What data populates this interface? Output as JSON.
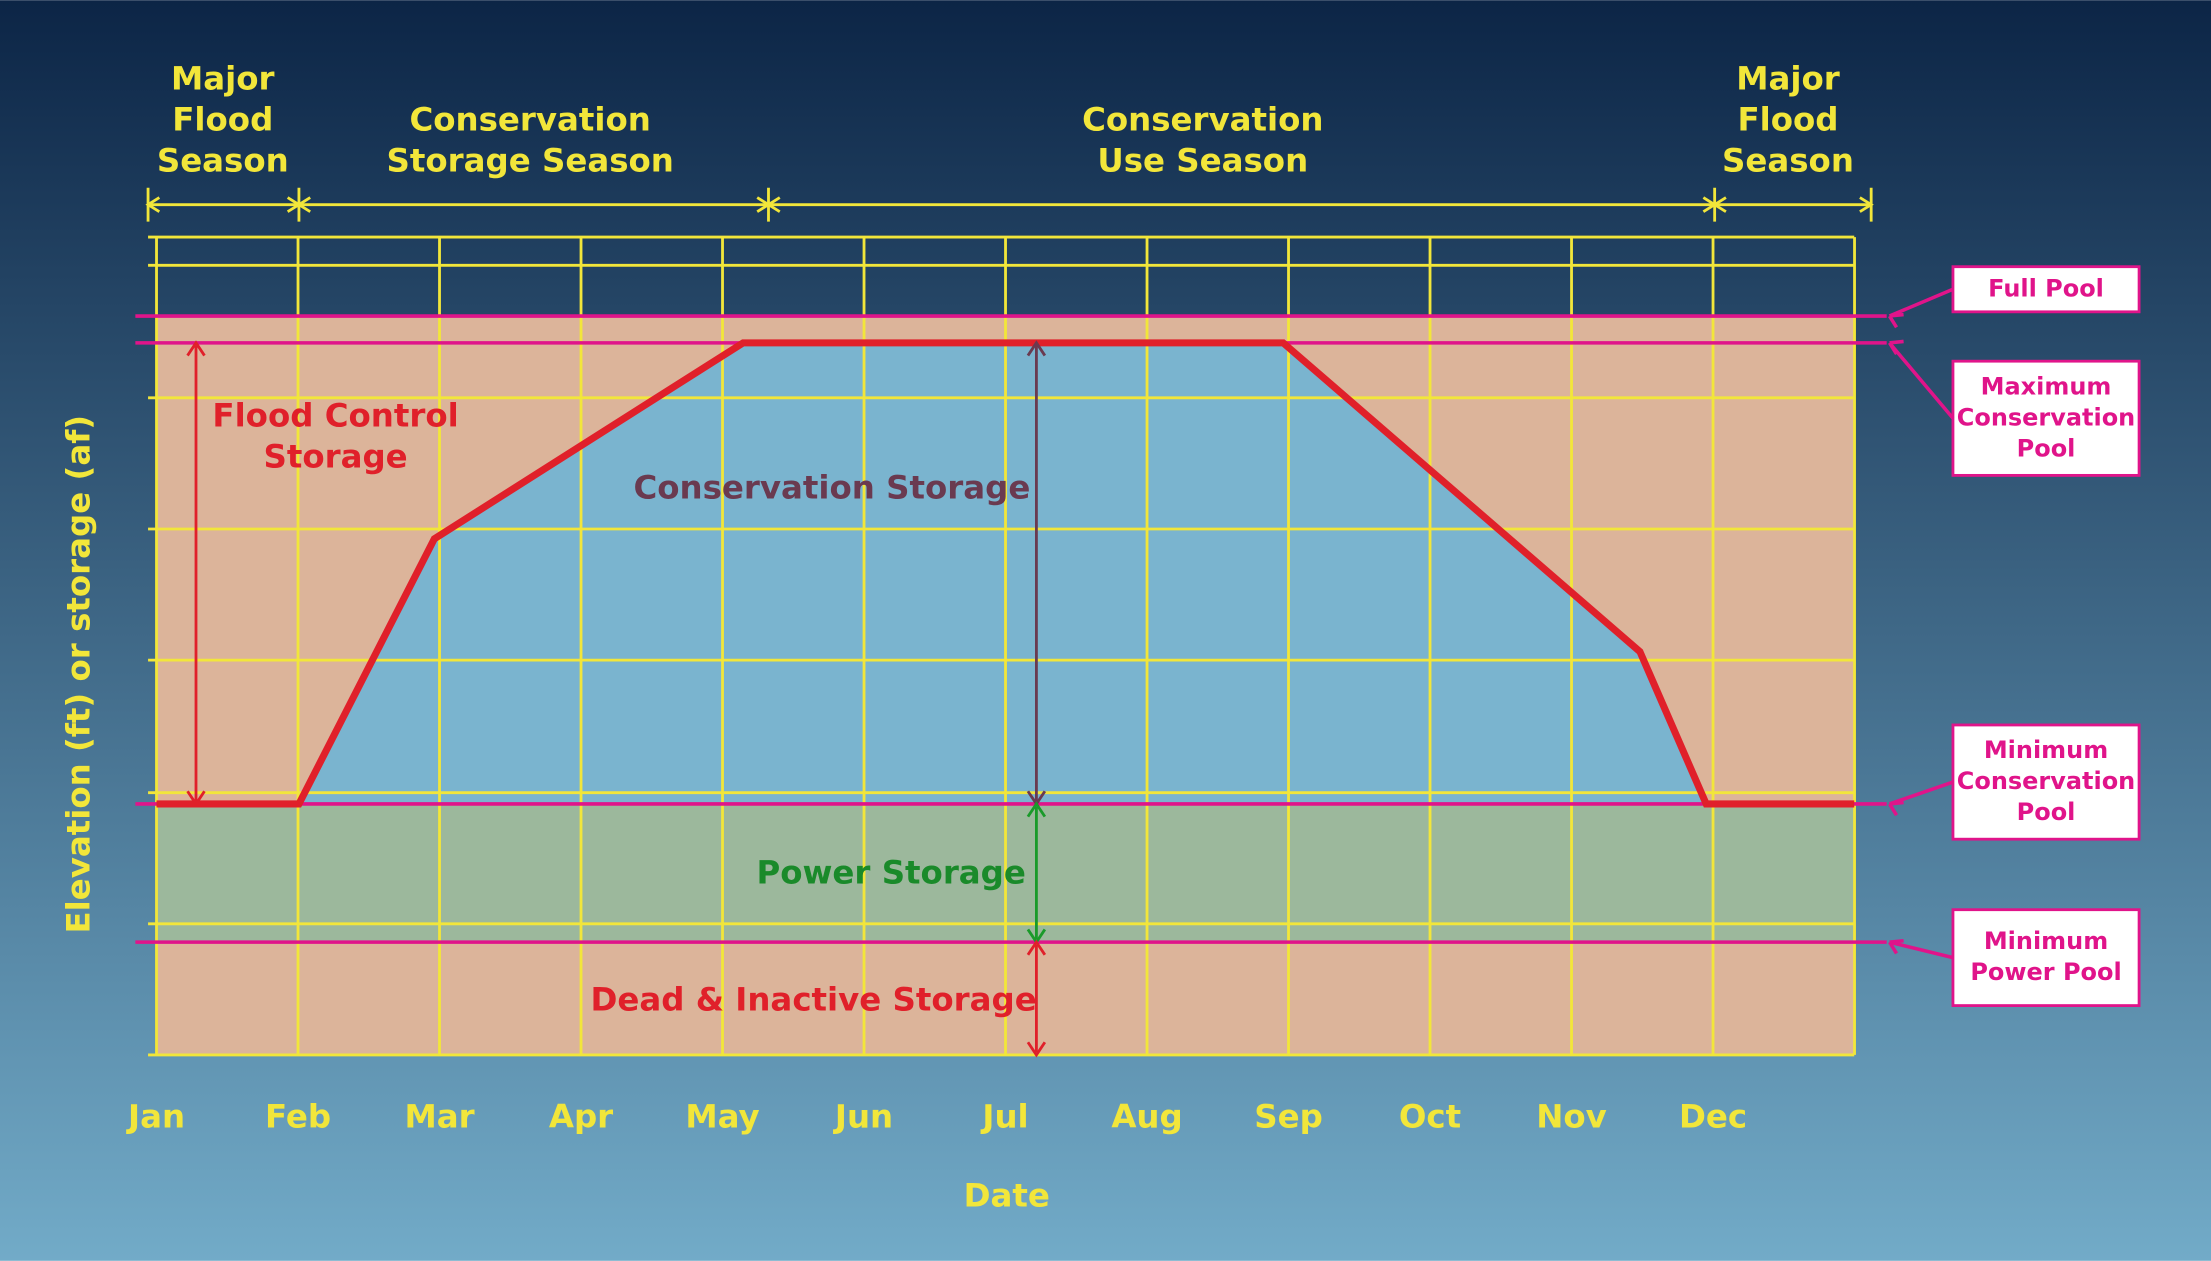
{
  "seasons": [
    [
      "Major",
      "Flood",
      "Season"
    ],
    [
      "Conservation",
      "Storage Season"
    ],
    [
      "Conservation",
      "Use Season"
    ],
    [
      "Major",
      "Flood",
      "Season"
    ]
  ],
  "months": [
    "Jan",
    "Feb",
    "Mar",
    "Apr",
    "May",
    "Jun",
    "Jul",
    "Aug",
    "Sep",
    "Oct",
    "Nov",
    "Dec"
  ],
  "x_axis_label": "Date",
  "y_axis_label": "Elevation (ft) or storage (af)",
  "regions": {
    "flood_control": [
      "Flood Control",
      "Storage"
    ],
    "conservation": "Conservation Storage",
    "power": "Power Storage",
    "dead": "Dead & Inactive Storage"
  },
  "pools": {
    "full": [
      "Full Pool"
    ],
    "max_conservation": [
      "Maximum",
      "Conservation",
      "Pool"
    ],
    "min_conservation": [
      "Minimum",
      "Conservation",
      "Pool"
    ],
    "min_power": [
      "Minimum",
      "Power Pool"
    ]
  }
}
